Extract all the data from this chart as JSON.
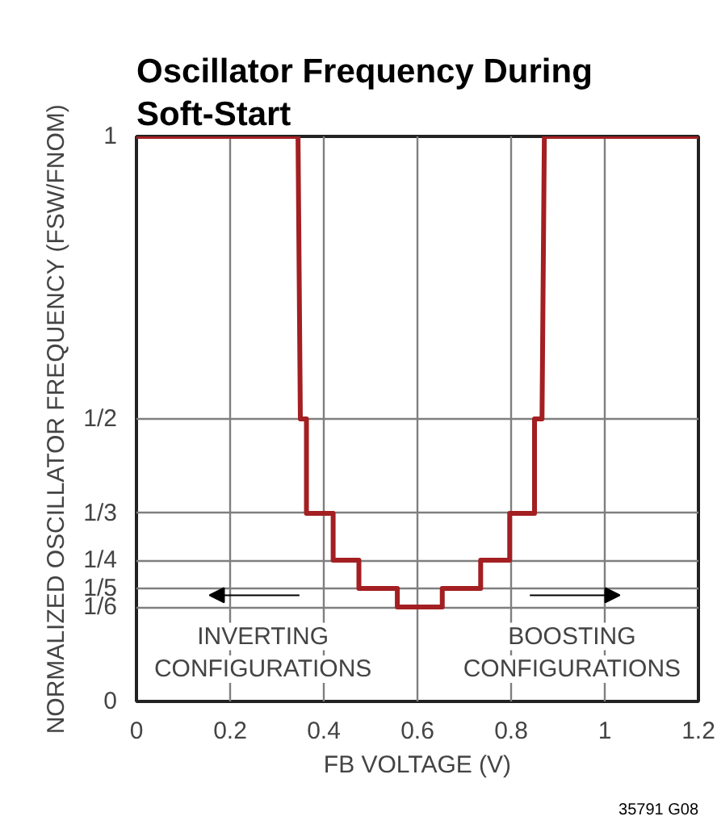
{
  "chart_data": {
    "type": "line",
    "title": "Oscillator Frequency During\nSoft-Start",
    "xlabel": "FB VOLTAGE (V)",
    "ylabel": "NORMALIZED OSCILLATOR FREQUENCY (FSW/FNOM)",
    "annotations": [
      "INVERTING\nCONFIGURATIONS",
      "BOOSTING\nCONFIGURATIONS",
      "35791 G08"
    ],
    "series": [
      {
        "color": "#a31f22",
        "x": [
          0,
          0.345,
          0.35,
          0.363,
          0.363,
          0.42,
          0.42,
          0.475,
          0.475,
          0.557,
          0.557,
          0.653,
          0.653,
          0.735,
          0.735,
          0.797,
          0.797,
          0.85,
          0.85,
          0.866,
          0.871,
          1.2
        ],
        "values": [
          1,
          1,
          0.5,
          0.5,
          0.333,
          0.333,
          0.25,
          0.25,
          0.2,
          0.2,
          0.167,
          0.167,
          0.2,
          0.2,
          0.25,
          0.25,
          0.333,
          0.333,
          0.5,
          0.5,
          1,
          1
        ]
      }
    ],
    "xlim": [
      0,
      1.2
    ],
    "xticks": [
      0,
      0.2,
      0.4,
      0.6,
      0.8,
      1,
      1.2
    ],
    "ylim": [
      0,
      1
    ],
    "yticks": [
      0,
      {
        "value": 0.1667,
        "label": "1/6"
      },
      {
        "value": 0.2,
        "label": "1/5"
      },
      {
        "value": 0.25,
        "label": "1/4"
      },
      {
        "value": 0.3333,
        "label": "1/3"
      },
      {
        "value": 0.5,
        "label": "1/2"
      },
      1
    ],
    "grid": true,
    "marker": "none",
    "line_style": "solid"
  }
}
